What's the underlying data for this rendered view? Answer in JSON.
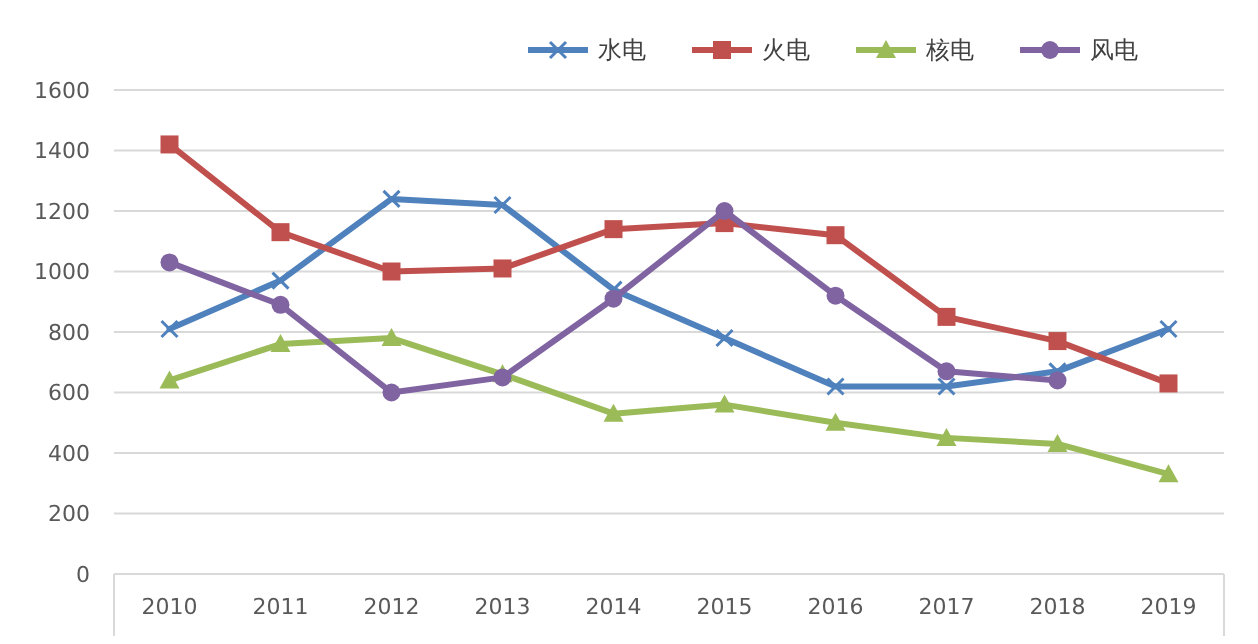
{
  "chart_data": {
    "type": "line",
    "categories": [
      "2010",
      "2011",
      "2012",
      "2013",
      "2014",
      "2015",
      "2016",
      "2017",
      "2018",
      "2019"
    ],
    "series": [
      {
        "name": "水电",
        "color": "#4f81bd",
        "marker": "cross",
        "values": [
          810,
          970,
          1240,
          1220,
          940,
          780,
          620,
          620,
          670,
          810
        ]
      },
      {
        "name": "火电",
        "color": "#c0504d",
        "marker": "square",
        "values": [
          1420,
          1130,
          1000,
          1010,
          1140,
          1160,
          1120,
          850,
          770,
          630
        ]
      },
      {
        "name": "核电",
        "color": "#9bbb59",
        "marker": "triangle",
        "values": [
          640,
          760,
          780,
          660,
          530,
          560,
          500,
          450,
          430,
          330
        ]
      },
      {
        "name": "风电",
        "color": "#8064a2",
        "marker": "circle",
        "values": [
          1030,
          890,
          600,
          650,
          910,
          1200,
          920,
          670,
          640,
          null
        ]
      }
    ],
    "ylim": [
      0,
      1600
    ],
    "yticks": [
      0,
      200,
      400,
      600,
      800,
      1000,
      1200,
      1400,
      1600
    ],
    "grid": "y",
    "legend": "top right"
  }
}
